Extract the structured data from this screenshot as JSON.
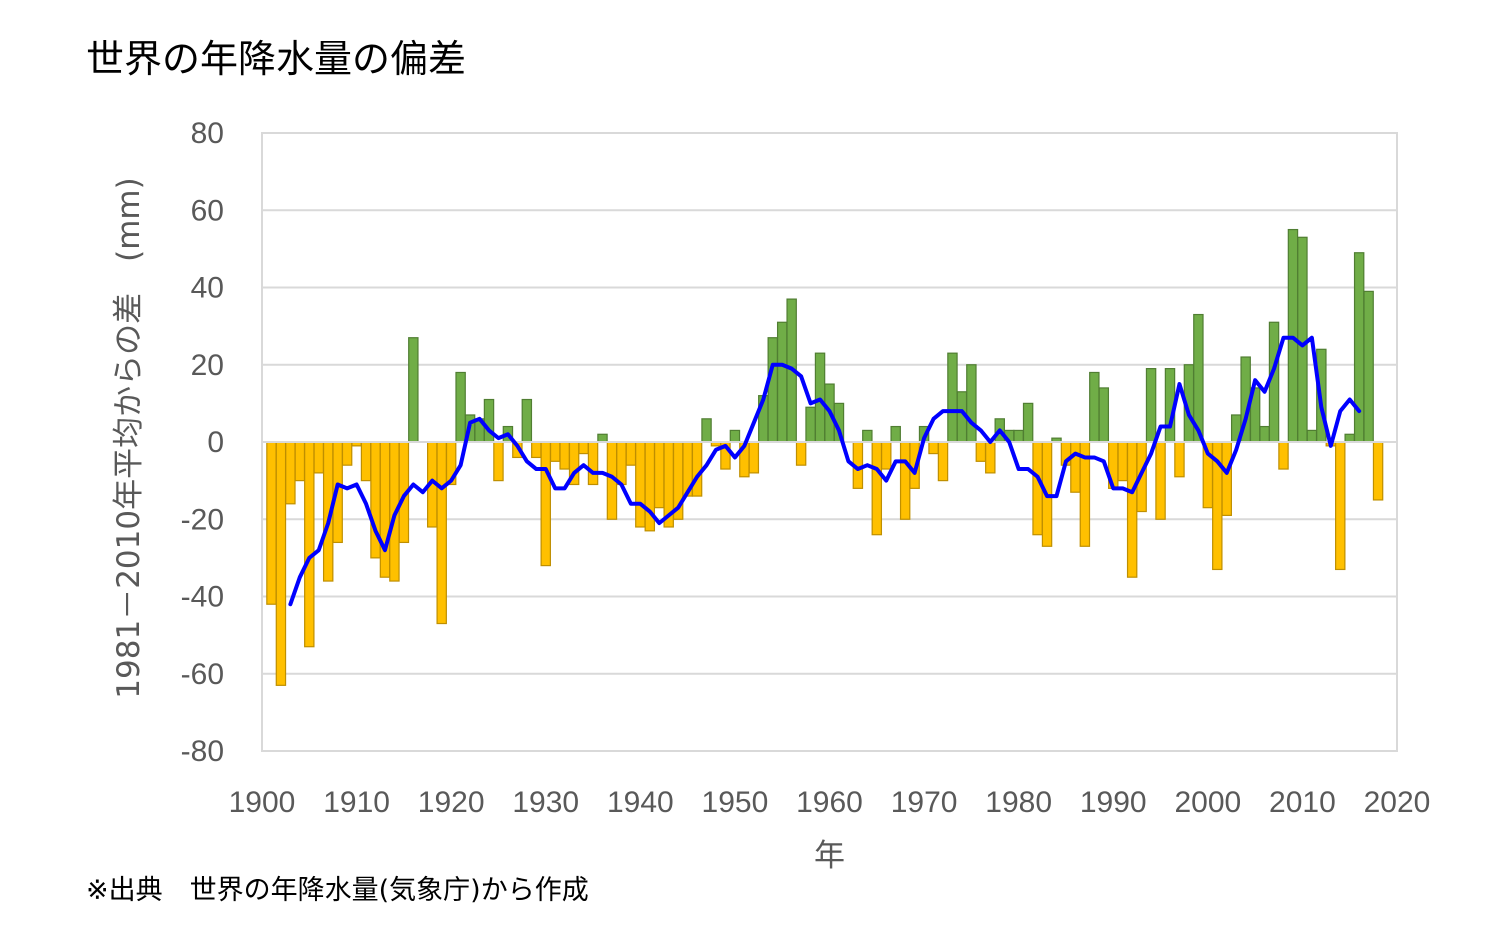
{
  "title": "世界の年降水量の偏差",
  "source": "※出典　世界の年降水量(気象庁)から作成",
  "chart_data": {
    "type": "bar",
    "xlabel": "年",
    "ylabel": "1981－2010年平均からの差　(mm)",
    "xlim": [
      1900,
      2020
    ],
    "ylim": [
      -80,
      80
    ],
    "xticks": [
      "1900",
      "1910",
      "1920",
      "1930",
      "1940",
      "1950",
      "1960",
      "1970",
      "1980",
      "1990",
      "2000",
      "2010",
      "2020"
    ],
    "yticks": [
      "80",
      "60",
      "40",
      "20",
      "0",
      "-20",
      "-40",
      "-60",
      "-80"
    ],
    "grid": "horizontal",
    "colors": {
      "positive": "#70ad47",
      "negative": "#ffc000",
      "line": "#0000ff"
    },
    "start_year": 1901,
    "values": [
      -42,
      -63,
      -16,
      -10,
      -53,
      -8,
      -36,
      -26,
      -6,
      -1,
      -10,
      -30,
      -35,
      -36,
      -26,
      27,
      0,
      -22,
      -47,
      -11,
      18,
      7,
      6,
      11,
      -10,
      4,
      -4,
      11,
      -4,
      -32,
      -5,
      -7,
      -11,
      -3,
      -11,
      2,
      -20,
      -11,
      -6,
      -22,
      -23,
      -17,
      -22,
      -20,
      -14,
      -14,
      6,
      -1,
      -7,
      3,
      -9,
      -8,
      12,
      27,
      31,
      37,
      -6,
      9,
      23,
      15,
      10,
      0,
      -12,
      3,
      -24,
      -7,
      4,
      -20,
      -12,
      4,
      -3,
      -10,
      23,
      13,
      20,
      -5,
      -8,
      6,
      3,
      3,
      10,
      -24,
      -27,
      1,
      -6,
      -13,
      -27,
      18,
      14,
      -12,
      -10,
      -35,
      -18,
      19,
      -20,
      19,
      -9,
      20,
      33,
      -17,
      -33,
      -19,
      7,
      22,
      14,
      4,
      31,
      -7,
      55,
      53,
      3,
      24,
      -1,
      -33,
      2,
      49,
      39,
      -15
    ],
    "series": [
      {
        "type": "line",
        "start_year": 1903,
        "values": [
          -42,
          -35,
          -30,
          -28,
          -21,
          -11,
          -12,
          -11,
          -16,
          -23,
          -28,
          -19,
          -14,
          -11,
          -13,
          -10,
          -12,
          -10,
          -6,
          5,
          6,
          3,
          1,
          2,
          -1,
          -5,
          -7,
          -7,
          -12,
          -12,
          -8,
          -6,
          -8,
          -8,
          -9,
          -11,
          -16,
          -16,
          -18,
          -21,
          -19,
          -17,
          -13,
          -9,
          -6,
          -2,
          -1,
          -4,
          -1,
          5,
          11,
          20,
          20,
          19,
          17,
          10,
          11,
          8,
          3,
          -5,
          -7,
          -6,
          -7,
          -10,
          -5,
          -5,
          -8,
          1,
          6,
          8,
          8,
          8,
          5,
          3,
          0,
          3,
          0,
          -7,
          -7,
          -9,
          -14,
          -14,
          -5,
          -3,
          -4,
          -4,
          -5,
          -12,
          -12,
          -13,
          -8,
          -3,
          4,
          4,
          15,
          7,
          3,
          -3,
          -5,
          -8,
          -2,
          6,
          16,
          13,
          19,
          27,
          27,
          25,
          27,
          9,
          -1,
          8,
          11,
          8
        ]
      }
    ]
  }
}
